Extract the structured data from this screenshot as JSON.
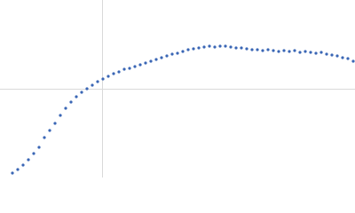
{
  "chart_data": {
    "type": "scatter",
    "color": "#3a66b5",
    "xlim": [
      0,
      400
    ],
    "ylim": [
      0,
      200
    ],
    "xgrid": [
      115
    ],
    "ygrid": [
      100
    ],
    "x": [
      14,
      20,
      26,
      32,
      38,
      44,
      50,
      56,
      62,
      68,
      74,
      80,
      86,
      92,
      98,
      104,
      110,
      116,
      122,
      128,
      134,
      140,
      146,
      152,
      158,
      164,
      170,
      176,
      182,
      188,
      194,
      200,
      206,
      212,
      218,
      224,
      230,
      236,
      242,
      248,
      254,
      260,
      266,
      272,
      278,
      284,
      290,
      296,
      302,
      308,
      314,
      320,
      326,
      332,
      338,
      344,
      350,
      356,
      362,
      368,
      374,
      380,
      386,
      392,
      398
    ],
    "values": [
      5,
      9,
      14,
      20,
      27,
      34,
      45,
      53,
      61,
      70,
      78,
      85,
      91,
      96,
      100,
      104,
      108,
      111,
      114,
      117,
      119,
      122,
      123,
      125,
      127,
      129,
      131,
      133,
      135,
      137,
      139,
      140,
      142,
      144,
      145,
      146,
      147,
      148,
      147,
      148,
      148,
      147,
      146,
      146,
      145,
      144,
      144,
      143,
      144,
      143,
      142,
      143,
      142,
      143,
      141,
      142,
      141,
      140,
      141,
      139,
      138,
      137,
      135,
      134,
      131
    ]
  }
}
